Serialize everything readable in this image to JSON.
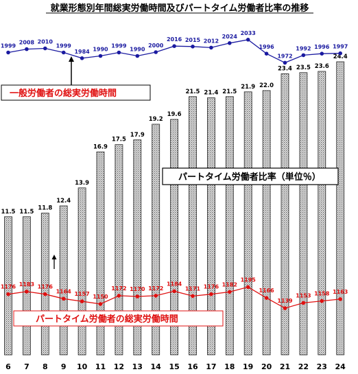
{
  "chart_data": {
    "type": "bar",
    "title": "就業形態別年間総実労働時間及びパートタイム労働者比率の推移",
    "categories": [
      "6",
      "7",
      "8",
      "9",
      "10",
      "11",
      "12",
      "13",
      "14",
      "15",
      "16",
      "17",
      "18",
      "19",
      "20",
      "21",
      "22",
      "23",
      "24"
    ],
    "bar_series": {
      "name": "パートタイム労働者比率（単位％）",
      "values": [
        11.5,
        11.5,
        11.8,
        12.4,
        13.9,
        16.9,
        17.5,
        17.9,
        19.2,
        19.6,
        21.5,
        21.4,
        21.5,
        21.9,
        22.0,
        23.4,
        23.5,
        23.6,
        24.4
      ],
      "ylim": [
        0,
        24.4
      ]
    },
    "line_series": [
      {
        "name": "一般労働者の総実労働時間",
        "values": [
          1999,
          2008,
          2010,
          1999,
          1984,
          1990,
          1999,
          1990,
          2000,
          2016,
          2015,
          2012,
          2024,
          2033,
          1996,
          1972,
          1992,
          1996,
          1997
        ],
        "color": "#1a1aa0"
      },
      {
        "name": "パートタイム労働者の総実労働時間",
        "values": [
          1176,
          1183,
          1176,
          1164,
          1157,
          1150,
          1172,
          1170,
          1172,
          1184,
          1171,
          1176,
          1182,
          1195,
          1166,
          1139,
          1153,
          1158,
          1163
        ],
        "color": "#e01010"
      }
    ],
    "colors": {
      "bar_fill": "#c8c8c8",
      "bar_stroke": "#222222",
      "general_line": "#1a1aa0",
      "part_line": "#e01010"
    }
  }
}
